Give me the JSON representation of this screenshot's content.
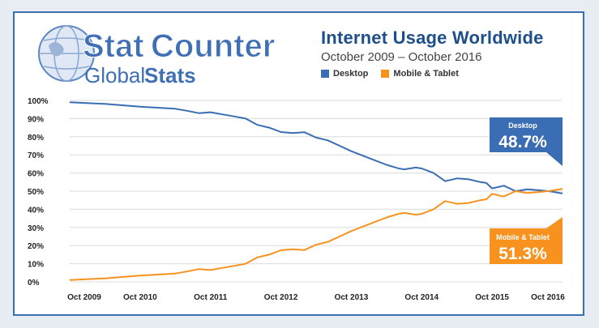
{
  "brand": {
    "logo_stat": "Stat",
    "logo_counter": "Counter",
    "logo_global": "Global",
    "logo_stats": "Stats"
  },
  "header": {
    "title": "Internet Usage Worldwide",
    "subtitle": "October 2009 – October 2016"
  },
  "colors": {
    "desktop": "#3a6db3",
    "mobile": "#f7921e",
    "grid": "#dcdcdc"
  },
  "callouts": {
    "desktop_label": "Desktop",
    "desktop_value": "48.7%",
    "mobile_label": "Mobile & Tablet",
    "mobile_value": "51.3%"
  },
  "chart_data": {
    "type": "line",
    "title": "Internet Usage Worldwide",
    "subtitle": "October 2009 – October 2016",
    "x_tick_labels": [
      "Oct 2009",
      "Oct 2010",
      "Oct 2011",
      "Oct 2012",
      "Oct 2013",
      "Oct 2014",
      "Oct 2015",
      "Oct 2016"
    ],
    "y_tick_labels": [
      "0%",
      "10%",
      "20%",
      "30%",
      "40%",
      "50%",
      "60%",
      "70%",
      "80%",
      "90%",
      "100%"
    ],
    "ylim": [
      0,
      100
    ],
    "x_range_months": [
      0,
      84
    ],
    "legend": "top",
    "grid": true,
    "series": [
      {
        "name": "Desktop",
        "x": [
          0,
          6,
          12,
          18,
          20,
          22,
          24,
          26,
          28,
          30,
          32,
          34,
          36,
          38,
          40,
          42,
          44,
          46,
          48,
          50,
          52,
          54,
          56,
          57,
          58,
          59,
          60,
          62,
          64,
          66,
          68,
          70,
          71,
          72,
          74,
          76,
          78,
          80,
          81,
          82,
          83,
          84
        ],
        "values": [
          99.0,
          98.1,
          96.5,
          95.4,
          94.3,
          93.0,
          93.5,
          92.3,
          91.2,
          90.0,
          86.5,
          85.0,
          82.6,
          82.0,
          82.5,
          79.5,
          78.0,
          75.0,
          72.0,
          69.5,
          67.0,
          64.5,
          62.6,
          62.0,
          62.5,
          63.0,
          62.5,
          60.0,
          55.5,
          57.0,
          56.5,
          55.0,
          54.5,
          51.5,
          53.0,
          50.0,
          51.0,
          50.5,
          50.2,
          49.8,
          49.3,
          48.7
        ]
      },
      {
        "name": "Mobile & Tablet",
        "x": [
          0,
          6,
          12,
          18,
          20,
          22,
          24,
          26,
          28,
          30,
          32,
          34,
          36,
          38,
          40,
          42,
          44,
          46,
          48,
          50,
          52,
          54,
          56,
          57,
          58,
          59,
          60,
          62,
          64,
          66,
          68,
          70,
          71,
          72,
          74,
          76,
          78,
          80,
          81,
          82,
          83,
          84
        ],
        "values": [
          1.0,
          1.9,
          3.5,
          4.6,
          5.7,
          7.0,
          6.5,
          7.7,
          8.8,
          10.0,
          13.5,
          15.0,
          17.4,
          18.0,
          17.5,
          20.5,
          22.0,
          25.0,
          28.0,
          30.5,
          33.0,
          35.5,
          37.4,
          38.0,
          37.5,
          37.0,
          37.5,
          40.0,
          44.5,
          43.0,
          43.5,
          45.0,
          45.5,
          48.5,
          47.0,
          50.0,
          49.0,
          49.5,
          49.8,
          50.2,
          50.7,
          51.3
        ]
      }
    ]
  }
}
